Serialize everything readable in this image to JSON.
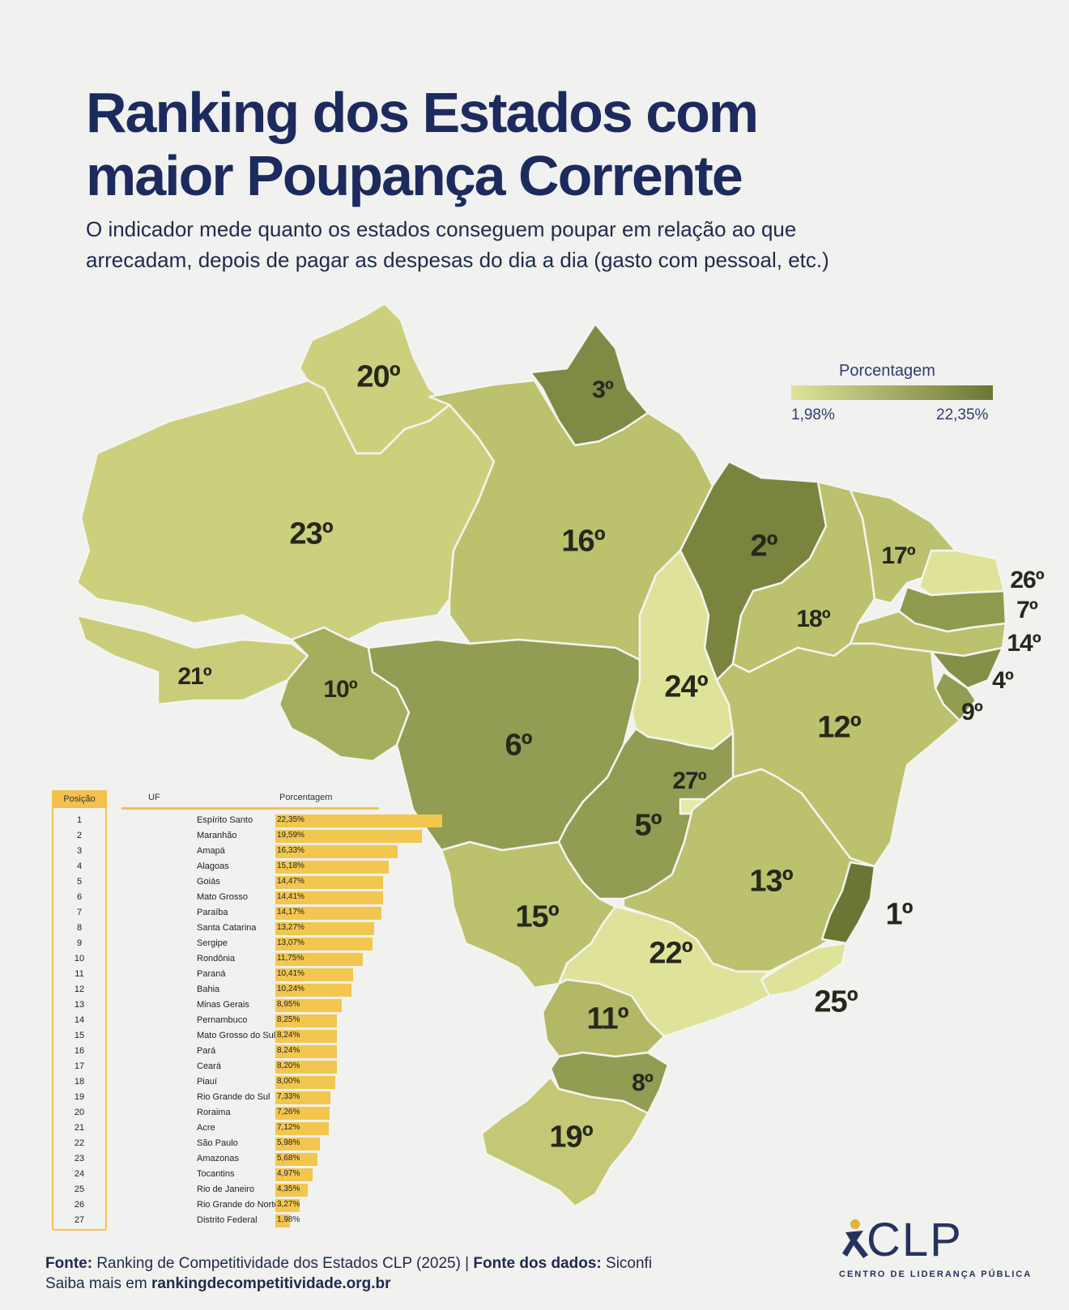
{
  "title": [
    "Ranking dos Estados com",
    "maior Poupança Corrente"
  ],
  "subtitle": [
    "O indicador mede quanto os estados conseguem poupar em relação ao que",
    "arrecadam, depois de pagar as despesas do dia a dia (gasto com pessoal, etc.)"
  ],
  "legend": {
    "title": "Porcentagem",
    "min": "1,98%",
    "max": "22,35%",
    "color_min": "#dfe39a",
    "color_max": "#6c7634"
  },
  "map_labels": [
    "20º",
    "3º",
    "23º",
    "16º",
    "2º",
    "17º",
    "26º",
    "7º",
    "14º",
    "4º",
    "9º",
    "18º",
    "24º",
    "21º",
    "10º",
    "6º",
    "12º",
    "27º",
    "5º",
    "13º",
    "1º",
    "15º",
    "22º",
    "25º",
    "11º",
    "8º",
    "19º"
  ],
  "table": {
    "col_pos": "Posição",
    "col_uf": "UF",
    "col_pct": "Porcentagem",
    "rows": [
      {
        "pos": "1",
        "uf": "Espírito Santo",
        "pct": "22,35%",
        "value": 22.35
      },
      {
        "pos": "2",
        "uf": "Maranhão",
        "pct": "19,59%",
        "value": 19.59
      },
      {
        "pos": "3",
        "uf": "Amapá",
        "pct": "16,33%",
        "value": 16.33
      },
      {
        "pos": "4",
        "uf": "Alagoas",
        "pct": "15,18%",
        "value": 15.18
      },
      {
        "pos": "5",
        "uf": "Goiás",
        "pct": "14,47%",
        "value": 14.47
      },
      {
        "pos": "6",
        "uf": "Mato Grosso",
        "pct": "14,41%",
        "value": 14.41
      },
      {
        "pos": "7",
        "uf": "Paraíba",
        "pct": "14,17%",
        "value": 14.17
      },
      {
        "pos": "8",
        "uf": "Santa Catarina",
        "pct": "13,27%",
        "value": 13.27
      },
      {
        "pos": "9",
        "uf": "Sergipe",
        "pct": "13,07%",
        "value": 13.07
      },
      {
        "pos": "10",
        "uf": "Rondônia",
        "pct": "11,75%",
        "value": 11.75
      },
      {
        "pos": "11",
        "uf": "Paraná",
        "pct": "10,41%",
        "value": 10.41
      },
      {
        "pos": "12",
        "uf": "Bahia",
        "pct": "10,24%",
        "value": 10.24
      },
      {
        "pos": "13",
        "uf": "Minas Gerais",
        "pct": "8,95%",
        "value": 8.95
      },
      {
        "pos": "14",
        "uf": "Pernambuco",
        "pct": "8,25%",
        "value": 8.25
      },
      {
        "pos": "15",
        "uf": "Mato Grosso do Sul",
        "pct": "8,24%",
        "value": 8.24
      },
      {
        "pos": "16",
        "uf": "Pará",
        "pct": "8,24%",
        "value": 8.24
      },
      {
        "pos": "17",
        "uf": "Ceará",
        "pct": "8,20%",
        "value": 8.2
      },
      {
        "pos": "18",
        "uf": "Piauí",
        "pct": "8,00%",
        "value": 8.0
      },
      {
        "pos": "19",
        "uf": "Rio Grande do Sul",
        "pct": "7,33%",
        "value": 7.33
      },
      {
        "pos": "20",
        "uf": "Roraima",
        "pct": "7,26%",
        "value": 7.26
      },
      {
        "pos": "21",
        "uf": "Acre",
        "pct": "7,12%",
        "value": 7.12
      },
      {
        "pos": "22",
        "uf": "São Paulo",
        "pct": "5,98%",
        "value": 5.98
      },
      {
        "pos": "23",
        "uf": "Amazonas",
        "pct": "5,68%",
        "value": 5.68
      },
      {
        "pos": "24",
        "uf": "Tocantins",
        "pct": "4,97%",
        "value": 4.97
      },
      {
        "pos": "25",
        "uf": "Rio de Janeiro",
        "pct": "4,35%",
        "value": 4.35
      },
      {
        "pos": "26",
        "uf": "Rio Grande do Norte",
        "pct": "3,27%",
        "value": 3.27
      },
      {
        "pos": "27",
        "uf": "Distrito Federal",
        "pct": "1,98%",
        "value": 1.98
      }
    ]
  },
  "source": {
    "fonte_label": "Fonte:",
    "fonte_text": "Ranking de Competitividade dos Estados CLP (2025) |",
    "dados_label": "Fonte dos dados:",
    "dados_text": "Siconfi",
    "saiba_text": "Saiba mais em",
    "url": "rankingdecompetitividade.org.br"
  },
  "logo": {
    "text": "CLP",
    "subtitle": "CENTRO DE LIDERANÇA PÚBLICA"
  }
}
